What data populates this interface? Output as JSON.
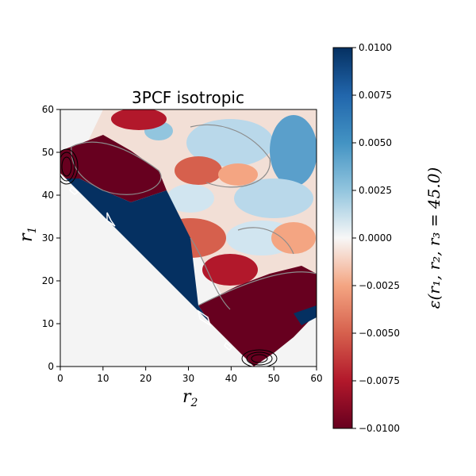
{
  "chart_data": {
    "type": "heatmap",
    "title": "3PCF isotropic",
    "xlabel": "r",
    "xlabel_sub": "2",
    "ylabel": "r",
    "ylabel_sub": "1",
    "xlim": [
      0,
      60
    ],
    "ylim": [
      0,
      60
    ],
    "xticks": [
      "0",
      "10",
      "20",
      "30",
      "40",
      "50",
      "60"
    ],
    "yticks": [
      "0",
      "10",
      "20",
      "30",
      "40",
      "50",
      "60"
    ],
    "colormap": "RdBu",
    "colorbar": {
      "label": "ε(r₁, r₂, r₃ = 45.0)",
      "range": [
        -0.01,
        0.01
      ],
      "ticks": [
        "0.0100",
        "0.0075",
        "0.0050",
        "0.0025",
        "0.0000",
        "−0.0025",
        "−0.0050",
        "−0.0075",
        "−0.0100"
      ],
      "tick_values": [
        0.01,
        0.0075,
        0.005,
        0.0025,
        0.0,
        -0.0025,
        -0.005,
        -0.0075,
        -0.01
      ]
    },
    "valid_region": "r1 + r2 >= 45 (triangle inequality); masked region shown in light gray",
    "regions": [
      {
        "name": "upper-left-negative",
        "value": -0.01
      },
      {
        "name": "diagonal-positive-band",
        "value": 0.01
      },
      {
        "name": "lower-right-negative",
        "value": -0.01
      },
      {
        "name": "upper-right-mixed",
        "value": 0.002
      }
    ]
  },
  "colors": {
    "masked": "#f4f4f4",
    "deep_red": "#67001f",
    "deep_blue": "#053061",
    "contour": "#8c8c8c"
  }
}
